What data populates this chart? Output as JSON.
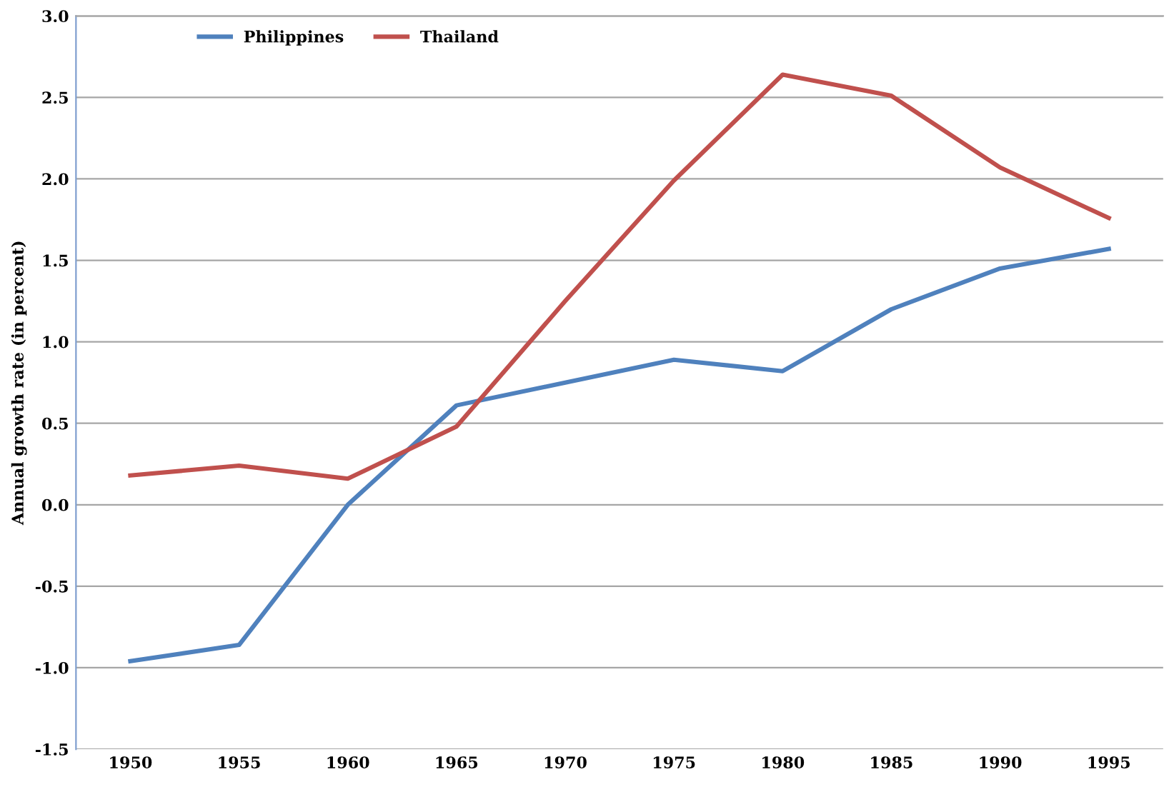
{
  "chart_data": {
    "type": "line",
    "ylabel": "Annual growth rate (in percent)",
    "categories": [
      "1950",
      "1955",
      "1960",
      "1965",
      "1970",
      "1975",
      "1980",
      "1985",
      "1990",
      "1995"
    ],
    "series": [
      {
        "name": "Philippines",
        "color": "#4f81bd",
        "values": [
          -0.96,
          -0.86,
          0.0,
          0.61,
          0.75,
          0.89,
          0.82,
          1.2,
          1.45,
          1.57
        ]
      },
      {
        "name": "Thailand",
        "color": "#c0504d",
        "values": [
          0.18,
          0.24,
          0.16,
          0.48,
          1.25,
          1.99,
          2.64,
          2.51,
          2.07,
          1.76
        ]
      }
    ],
    "ylim": [
      -1.5,
      3.0
    ],
    "yticks": [
      {
        "value": -1.5,
        "label": "-1.5"
      },
      {
        "value": -1.0,
        "label": "-1.0"
      },
      {
        "value": -0.5,
        "label": "-0.5"
      },
      {
        "value": 0.0,
        "label": "0.0"
      },
      {
        "value": 0.5,
        "label": "0.5"
      },
      {
        "value": 1.0,
        "label": "1.0"
      },
      {
        "value": 1.5,
        "label": "1.5"
      },
      {
        "value": 2.0,
        "label": "2.0"
      },
      {
        "value": 2.5,
        "label": "2.5"
      },
      {
        "value": 3.0,
        "label": "3.0"
      }
    ],
    "grid": "y",
    "legend": "top left",
    "marker": "none",
    "line_style": "solid"
  }
}
